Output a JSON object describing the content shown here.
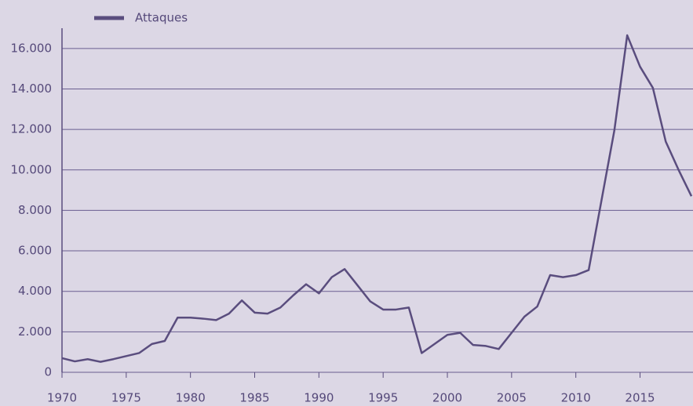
{
  "chart_data": {
    "type": "line",
    "x": [
      1970,
      1971,
      1972,
      1973,
      1974,
      1975,
      1976,
      1977,
      1978,
      1979,
      1980,
      1981,
      1982,
      1983,
      1984,
      1985,
      1986,
      1987,
      1988,
      1989,
      1990,
      1991,
      1992,
      1993,
      1994,
      1995,
      1996,
      1997,
      1998,
      1999,
      2000,
      2001,
      2002,
      2003,
      2004,
      2005,
      2006,
      2007,
      2008,
      2009,
      2010,
      2011,
      2012,
      2013,
      2014,
      2015,
      2016,
      2017,
      2018,
      2019
    ],
    "series": [
      {
        "name": "Attaques",
        "color": "#5a4d7e",
        "values": [
          700,
          540,
          650,
          517,
          650,
          800,
          950,
          1400,
          1550,
          2700,
          2700,
          2650,
          2580,
          2900,
          3550,
          2950,
          2900,
          3200,
          3800,
          4350,
          3900,
          4700,
          5100,
          4300,
          3500,
          3100,
          3100,
          3200,
          950,
          1400,
          1850,
          1950,
          1350,
          1300,
          1150,
          1950,
          2750,
          3250,
          4800,
          4700,
          4800,
          5050,
          8500,
          11950,
          16650,
          15100,
          14050,
          11400,
          10000,
          8700
        ]
      }
    ],
    "xlim": [
      1970,
      2019
    ],
    "xticks": [
      1970,
      1975,
      1980,
      1985,
      1990,
      1995,
      2000,
      2005,
      2010,
      2015
    ],
    "ylim": [
      0,
      17000
    ],
    "yticks": [
      0,
      {
        "value": 2000,
        "label": "2.000"
      },
      {
        "value": 4000,
        "label": "4.000"
      },
      {
        "value": 6000,
        "label": "6.000"
      },
      {
        "value": 8000,
        "label": "8.000"
      },
      {
        "value": 10000,
        "label": "10.000"
      },
      {
        "value": 12000,
        "label": "12.000"
      },
      {
        "value": 14000,
        "label": "14.000"
      },
      {
        "value": 16000,
        "label": "16.000"
      }
    ],
    "grid": true,
    "legend": "top-left"
  }
}
